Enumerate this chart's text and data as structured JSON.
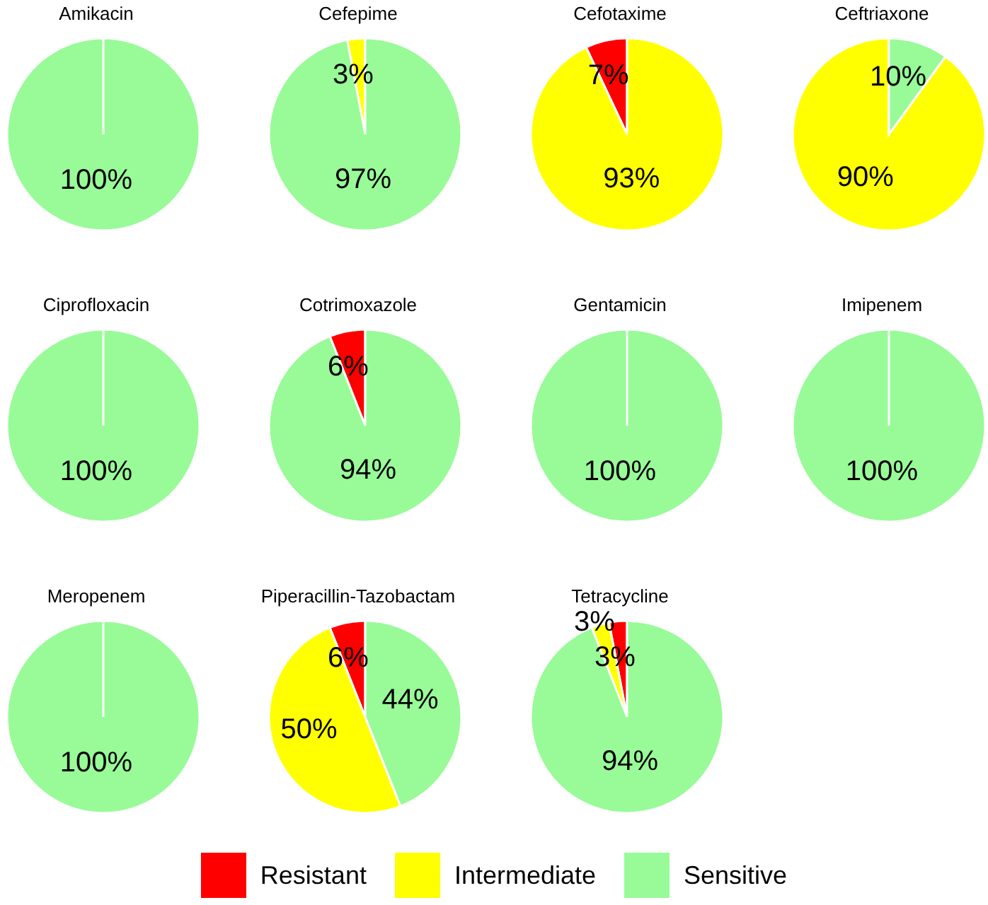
{
  "chart_data": [
    {
      "type": "pie",
      "title": "Amikacin",
      "categories": [
        "Resistant",
        "Intermediate",
        "Sensitive"
      ],
      "colors": [
        "#ff0000",
        "#ffff00",
        "#98fb98"
      ],
      "values": [
        0,
        0,
        100
      ],
      "value_labels": [
        null,
        null,
        "100%"
      ],
      "legend": "bottom"
    },
    {
      "type": "pie",
      "title": "Cefepime",
      "categories": [
        null,
        null,
        null
      ],
      "colors": [
        "#ff0000",
        "#ffff00",
        "#98fb98"
      ],
      "values": [
        0,
        3,
        97
      ],
      "value_labels": [
        null,
        "3%",
        "97%"
      ]
    },
    {
      "type": "pie",
      "title": "Cefotaxime",
      "categories": [
        null,
        null,
        null
      ],
      "colors": [
        "#ff0000",
        "#ffff00",
        "#98fb98"
      ],
      "values": [
        7,
        93,
        0
      ],
      "value_labels": [
        "7%",
        "93%",
        null
      ]
    },
    {
      "type": "pie",
      "title": "Ceftriaxone",
      "categories": [
        null,
        null,
        null
      ],
      "colors": [
        "#ff0000",
        "#ffff00",
        "#98fb98"
      ],
      "values": [
        0,
        90,
        10
      ],
      "value_labels": [
        null,
        "90%",
        "10%"
      ]
    },
    {
      "type": "pie",
      "title": "Ciprofloxacin",
      "categories": [
        null,
        null,
        null
      ],
      "colors": [
        "#ff0000",
        "#ffff00",
        "#98fb98"
      ],
      "values": [
        0,
        0,
        100
      ],
      "value_labels": [
        null,
        null,
        "100%"
      ]
    },
    {
      "type": "pie",
      "title": "Cotrimoxazole",
      "categories": [
        null,
        null,
        null
      ],
      "colors": [
        "#ff0000",
        "#ffff00",
        "#98fb98"
      ],
      "values": [
        6,
        0,
        94
      ],
      "value_labels": [
        "6%",
        null,
        "94%"
      ]
    },
    {
      "type": "pie",
      "title": "Gentamicin",
      "categories": [
        null,
        null,
        null
      ],
      "colors": [
        "#ff0000",
        "#ffff00",
        "#98fb98"
      ],
      "values": [
        0,
        0,
        100
      ],
      "value_labels": [
        null,
        null,
        "100%"
      ]
    },
    {
      "type": "pie",
      "title": "Imipenem",
      "categories": [
        null,
        null,
        null
      ],
      "colors": [
        "#ff0000",
        "#ffff00",
        "#98fb98"
      ],
      "values": [
        0,
        0,
        100
      ],
      "value_labels": [
        null,
        null,
        "100%"
      ]
    },
    {
      "type": "pie",
      "title": "Meropenem",
      "categories": [
        null,
        null,
        null
      ],
      "colors": [
        "#ff0000",
        "#ffff00",
        "#98fb98"
      ],
      "values": [
        0,
        0,
        100
      ],
      "value_labels": [
        null,
        null,
        "100%"
      ]
    },
    {
      "type": "pie",
      "title": "Piperacillin-Tazobactam",
      "categories": [
        null,
        null,
        null
      ],
      "colors": [
        "#ff0000",
        "#ffff00",
        "#98fb98"
      ],
      "values": [
        6,
        50,
        44
      ],
      "value_labels": [
        "6%",
        "50%",
        "44%"
      ]
    },
    {
      "type": "pie",
      "title": "Tetracycline",
      "categories": [
        null,
        null,
        null
      ],
      "colors": [
        "#ff0000",
        "#ffff00",
        "#98fb98"
      ],
      "values": [
        3,
        3,
        94
      ],
      "value_labels": [
        "3%",
        "3%",
        "94%"
      ]
    }
  ]
}
